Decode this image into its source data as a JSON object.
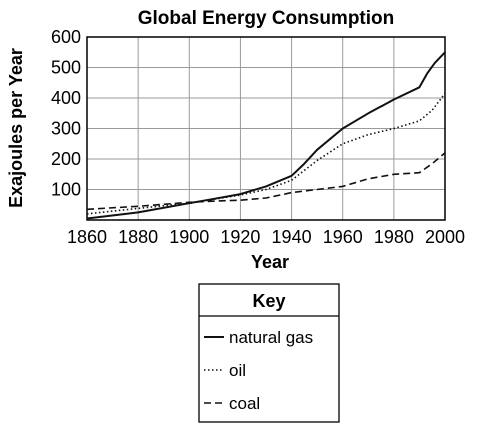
{
  "chart_data": {
    "type": "line",
    "title": "Global Energy Consumption",
    "xlabel": "Year",
    "ylabel": "Exajoules per Year",
    "xlim": [
      1860,
      2000
    ],
    "ylim": [
      0,
      600
    ],
    "xticks": [
      1860,
      1880,
      1900,
      1920,
      1940,
      1960,
      1980,
      2000
    ],
    "yticks": [
      100,
      200,
      300,
      400,
      500,
      600
    ],
    "grid": true,
    "legend": {
      "title": "Key",
      "placement": "bottom-center"
    },
    "series": [
      {
        "name": "natural gas",
        "style": "solid",
        "points": [
          [
            1860,
            5
          ],
          [
            1880,
            25
          ],
          [
            1900,
            55
          ],
          [
            1910,
            70
          ],
          [
            1920,
            85
          ],
          [
            1930,
            110
          ],
          [
            1940,
            145
          ],
          [
            1945,
            185
          ],
          [
            1950,
            230
          ],
          [
            1960,
            300
          ],
          [
            1970,
            350
          ],
          [
            1980,
            395
          ],
          [
            1990,
            435
          ],
          [
            1993,
            480
          ],
          [
            1996,
            515
          ],
          [
            2000,
            550
          ]
        ]
      },
      {
        "name": "oil",
        "style": "dotted",
        "points": [
          [
            1860,
            20
          ],
          [
            1880,
            38
          ],
          [
            1900,
            55
          ],
          [
            1920,
            82
          ],
          [
            1930,
            100
          ],
          [
            1940,
            130
          ],
          [
            1950,
            195
          ],
          [
            1960,
            250
          ],
          [
            1970,
            280
          ],
          [
            1980,
            300
          ],
          [
            1990,
            325
          ],
          [
            1995,
            360
          ],
          [
            2000,
            415
          ]
        ]
      },
      {
        "name": "coal",
        "style": "dashed",
        "points": [
          [
            1860,
            35
          ],
          [
            1880,
            45
          ],
          [
            1900,
            58
          ],
          [
            1910,
            62
          ],
          [
            1920,
            65
          ],
          [
            1930,
            72
          ],
          [
            1940,
            90
          ],
          [
            1950,
            100
          ],
          [
            1960,
            110
          ],
          [
            1970,
            135
          ],
          [
            1980,
            150
          ],
          [
            1990,
            155
          ],
          [
            1995,
            185
          ],
          [
            2000,
            220
          ]
        ]
      }
    ]
  }
}
